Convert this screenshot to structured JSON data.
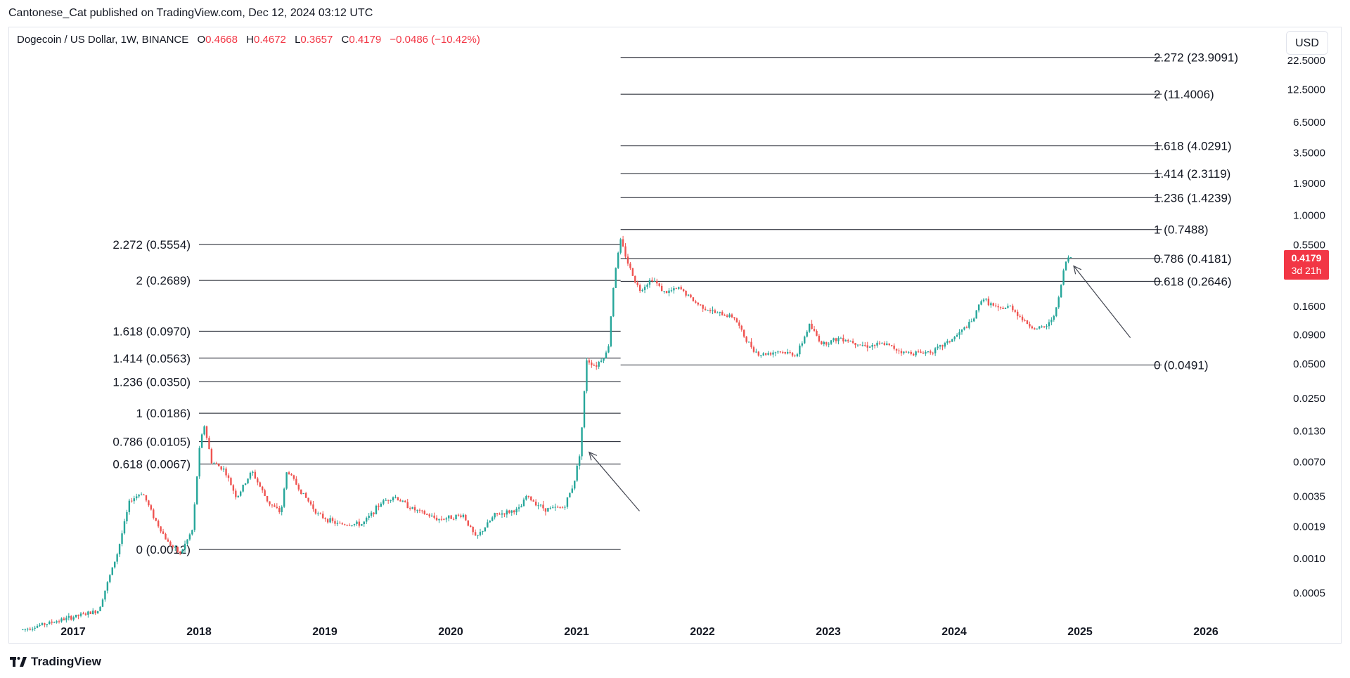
{
  "header": {
    "published_by": "Cantonese_Cat published on TradingView.com, Dec 12, 2024 03:12 UTC"
  },
  "legend": {
    "symbol": "Dogecoin / US Dollar, 1W, BINANCE",
    "open_label": "O",
    "open": "0.4668",
    "high_label": "H",
    "high": "0.4672",
    "low_label": "L",
    "low": "0.3657",
    "close_label": "C",
    "close": "0.4179",
    "change": "−0.0486 (−10.42%)"
  },
  "currency_button": "USD",
  "price_tag": {
    "price": "0.4179",
    "countdown": "3d 21h"
  },
  "footer": {
    "brand": "TradingView"
  },
  "colors": {
    "up": "#26a69a",
    "down": "#ef5350",
    "tag": "#f23645",
    "line": "#131722"
  },
  "chart_data": {
    "type": "candlestick",
    "scale": "log",
    "y_axis_labels": [
      "22.5000",
      "12.5000",
      "6.5000",
      "3.5000",
      "1.9000",
      "1.0000",
      "0.5500",
      "0.1600",
      "0.0900",
      "0.0500",
      "0.0250",
      "0.0130",
      "0.0070",
      "0.0035",
      "0.0019",
      "0.0010",
      "0.0005"
    ],
    "x_axis_labels": [
      {
        "label": "2017",
        "year": 2017
      },
      {
        "label": "2018",
        "year": 2018
      },
      {
        "label": "2019",
        "year": 2019
      },
      {
        "label": "2020",
        "year": 2020
      },
      {
        "label": "2021",
        "year": 2021
      },
      {
        "label": "2022",
        "year": 2022
      },
      {
        "label": "2023",
        "year": 2023
      },
      {
        "label": "2024",
        "year": 2024
      },
      {
        "label": "2025",
        "year": 2025
      },
      {
        "label": "2026",
        "year": 2026
      }
    ],
    "fib_left": {
      "start_year": 2018.0,
      "end_year": 2021.35,
      "levels": [
        {
          "label": "2.272 (0.5554)",
          "price": 0.5554
        },
        {
          "label": "2 (0.2689)",
          "price": 0.2689
        },
        {
          "label": "1.618 (0.0970)",
          "price": 0.097
        },
        {
          "label": "1.414 (0.0563)",
          "price": 0.0563
        },
        {
          "label": "1.236 (0.0350)",
          "price": 0.035
        },
        {
          "label": "1 (0.0186)",
          "price": 0.0186
        },
        {
          "label": "0.786 (0.0105)",
          "price": 0.0105
        },
        {
          "label": "0.618 (0.0067)",
          "price": 0.0067
        },
        {
          "label": "0 (0.0012)",
          "price": 0.0012
        }
      ]
    },
    "fib_right": {
      "start_year": 2021.35,
      "end_year": 2025.65,
      "levels": [
        {
          "label": "2.272 (23.9091)",
          "price": 23.9091
        },
        {
          "label": "2 (11.4006)",
          "price": 11.4006
        },
        {
          "label": "1.618 (4.0291)",
          "price": 4.0291
        },
        {
          "label": "1.414 (2.3119)",
          "price": 2.3119
        },
        {
          "label": "1.236 (1.4239)",
          "price": 1.4239
        },
        {
          "label": "1 (0.7488)",
          "price": 0.7488
        },
        {
          "label": "0.786 (0.4181)",
          "price": 0.4181
        },
        {
          "label": "0.618 (0.2646)",
          "price": 0.2646
        },
        {
          "label": "0 (0.0491)",
          "price": 0.0491
        }
      ]
    },
    "arrows": [
      {
        "from_year": 2021.5,
        "from_price": 0.0026,
        "to_year": 2021.1,
        "to_price": 0.0085
      },
      {
        "from_year": 2025.4,
        "from_price": 0.085,
        "to_year": 2024.95,
        "to_price": 0.36
      }
    ],
    "price_path": [
      [
        2016.6,
        0.00024
      ],
      [
        2017.2,
        0.00035
      ],
      [
        2017.35,
        0.0011
      ],
      [
        2017.45,
        0.0032
      ],
      [
        2017.55,
        0.0038
      ],
      [
        2017.65,
        0.0022
      ],
      [
        2017.75,
        0.0014
      ],
      [
        2017.85,
        0.0011
      ],
      [
        2017.95,
        0.0018
      ],
      [
        2018.0,
        0.0085
      ],
      [
        2018.04,
        0.015
      ],
      [
        2018.1,
        0.007
      ],
      [
        2018.2,
        0.006
      ],
      [
        2018.3,
        0.0034
      ],
      [
        2018.42,
        0.0058
      ],
      [
        2018.55,
        0.0031
      ],
      [
        2018.65,
        0.0025
      ],
      [
        2018.7,
        0.006
      ],
      [
        2018.8,
        0.004
      ],
      [
        2018.95,
        0.0024
      ],
      [
        2019.1,
        0.002
      ],
      [
        2019.3,
        0.002
      ],
      [
        2019.45,
        0.0031
      ],
      [
        2019.55,
        0.0035
      ],
      [
        2019.7,
        0.0027
      ],
      [
        2019.9,
        0.0022
      ],
      [
        2020.1,
        0.0024
      ],
      [
        2020.2,
        0.0015
      ],
      [
        2020.35,
        0.0024
      ],
      [
        2020.55,
        0.0027
      ],
      [
        2020.6,
        0.0035
      ],
      [
        2020.75,
        0.0027
      ],
      [
        2020.9,
        0.0028
      ],
      [
        2020.98,
        0.0046
      ],
      [
        2021.03,
        0.009
      ],
      [
        2021.08,
        0.055
      ],
      [
        2021.15,
        0.048
      ],
      [
        2021.25,
        0.065
      ],
      [
        2021.3,
        0.3
      ],
      [
        2021.35,
        0.6
      ],
      [
        2021.42,
        0.35
      ],
      [
        2021.5,
        0.22
      ],
      [
        2021.6,
        0.28
      ],
      [
        2021.7,
        0.21
      ],
      [
        2021.82,
        0.23
      ],
      [
        2021.95,
        0.17
      ],
      [
        2022.1,
        0.14
      ],
      [
        2022.25,
        0.13
      ],
      [
        2022.35,
        0.08
      ],
      [
        2022.45,
        0.06
      ],
      [
        2022.6,
        0.065
      ],
      [
        2022.75,
        0.06
      ],
      [
        2022.85,
        0.11
      ],
      [
        2022.95,
        0.075
      ],
      [
        2023.1,
        0.085
      ],
      [
        2023.3,
        0.072
      ],
      [
        2023.45,
        0.075
      ],
      [
        2023.6,
        0.063
      ],
      [
        2023.75,
        0.063
      ],
      [
        2023.85,
        0.066
      ],
      [
        2024.0,
        0.085
      ],
      [
        2024.15,
        0.12
      ],
      [
        2024.22,
        0.19
      ],
      [
        2024.35,
        0.15
      ],
      [
        2024.45,
        0.16
      ],
      [
        2024.55,
        0.12
      ],
      [
        2024.65,
        0.1
      ],
      [
        2024.75,
        0.11
      ],
      [
        2024.82,
        0.16
      ],
      [
        2024.88,
        0.38
      ],
      [
        2024.92,
        0.45
      ],
      [
        2024.945,
        0.4179
      ]
    ]
  }
}
